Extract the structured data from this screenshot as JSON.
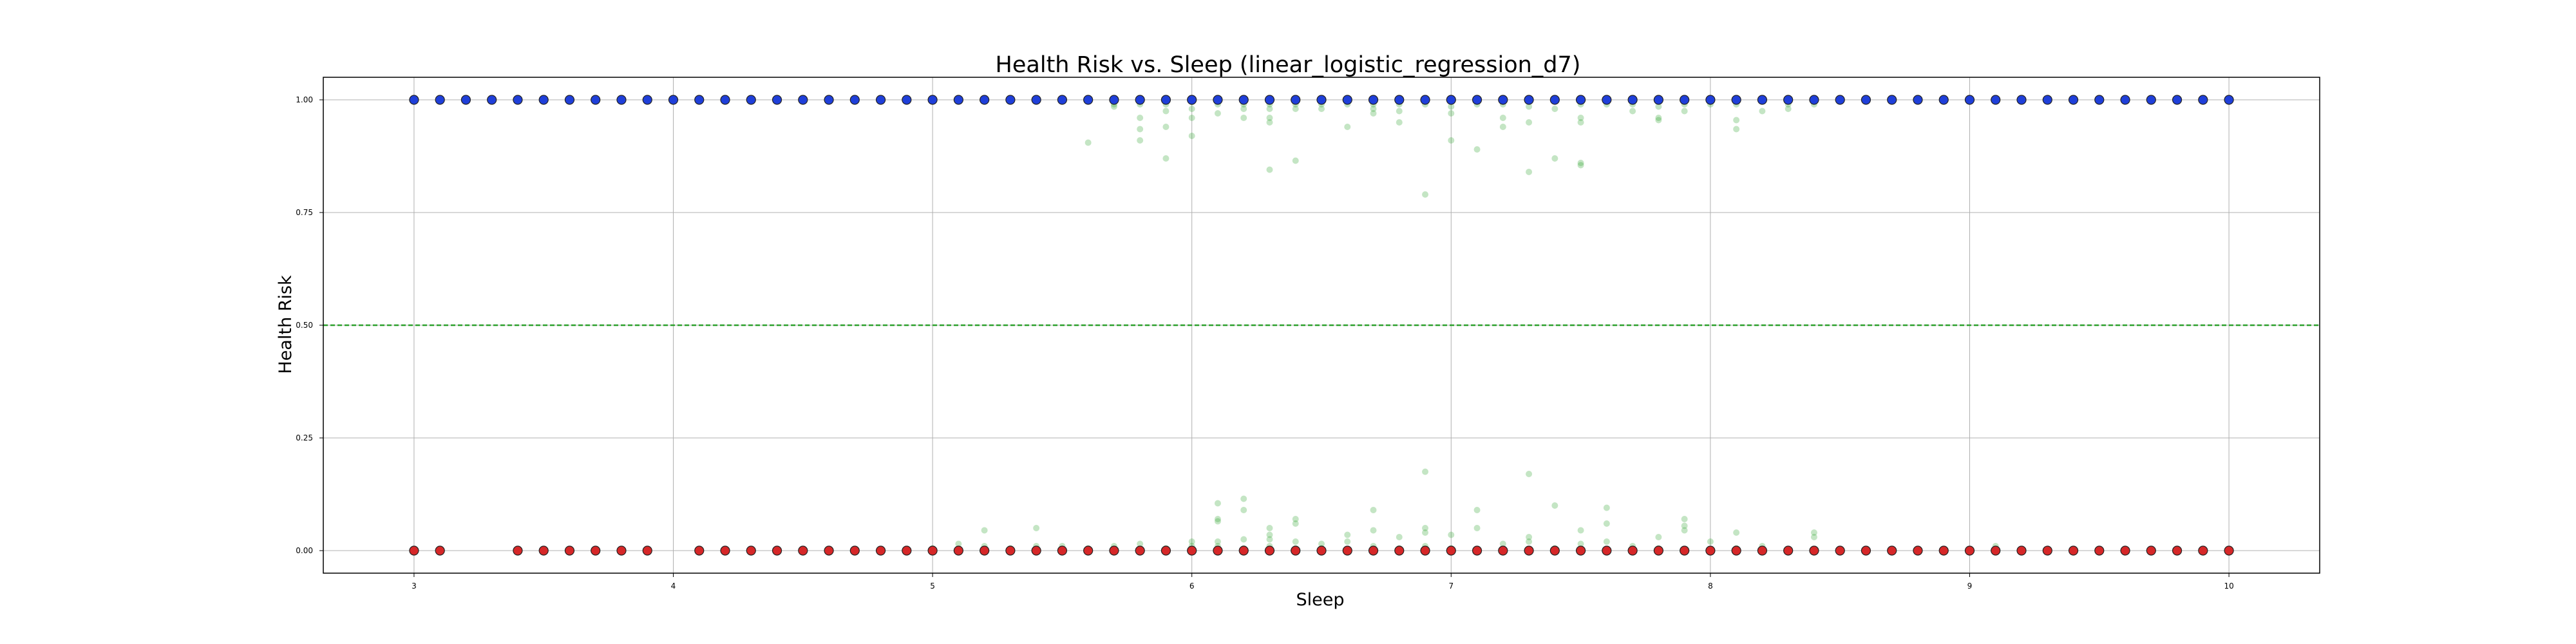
{
  "chart_data": {
    "type": "scatter",
    "title": "Health Risk vs. Sleep (linear_logistic_regression_d7)",
    "xlabel": "Sleep",
    "ylabel": "Health Risk",
    "xlim": [
      2.65,
      10.35
    ],
    "ylim": [
      -0.05,
      1.05
    ],
    "xticks": [
      3,
      4,
      5,
      6,
      7,
      8,
      9,
      10
    ],
    "yticks": [
      0.0,
      0.25,
      0.5,
      0.75,
      1.0
    ],
    "ytick_labels": [
      "0.00",
      "0.25",
      "0.50",
      "0.75",
      "1.00"
    ],
    "grid": true,
    "threshold": {
      "y": 0.5,
      "color": "#2ca02c",
      "style": "dashed"
    },
    "colors": {
      "positive": "#1f3fd9",
      "negative": "#d62728",
      "prediction": "#2ca02c",
      "marker_edge": "#222222"
    },
    "series": [
      {
        "color_key": "positive",
        "y": 1.0,
        "x": [
          3.0,
          3.1,
          3.2,
          3.3,
          3.4,
          3.5,
          3.6,
          3.7,
          3.8,
          3.9,
          4.0,
          4.1,
          4.2,
          4.3,
          4.4,
          4.5,
          4.6,
          4.7,
          4.8,
          4.9,
          5.0,
          5.1,
          5.2,
          5.3,
          5.4,
          5.5,
          5.6,
          5.7,
          5.8,
          5.9,
          6.0,
          6.1,
          6.2,
          6.3,
          6.4,
          6.5,
          6.6,
          6.7,
          6.8,
          6.9,
          7.0,
          7.1,
          7.2,
          7.3,
          7.4,
          7.5,
          7.6,
          7.7,
          7.8,
          7.9,
          8.0,
          8.1,
          8.2,
          8.3,
          8.4,
          8.5,
          8.6,
          8.7,
          8.8,
          8.9,
          9.0,
          9.1,
          9.2,
          9.3,
          9.4,
          9.5,
          9.6,
          9.7,
          9.8,
          9.9,
          10.0
        ]
      },
      {
        "color_key": "negative",
        "y": 0.0,
        "x": [
          3.0,
          3.1,
          3.4,
          3.5,
          3.6,
          3.7,
          3.8,
          3.9,
          4.1,
          4.2,
          4.3,
          4.4,
          4.5,
          4.6,
          4.7,
          4.8,
          4.9,
          5.0,
          5.1,
          5.2,
          5.3,
          5.4,
          5.5,
          5.6,
          5.7,
          5.8,
          5.9,
          6.0,
          6.1,
          6.2,
          6.3,
          6.4,
          6.5,
          6.6,
          6.7,
          6.8,
          6.9,
          7.0,
          7.1,
          7.2,
          7.3,
          7.4,
          7.5,
          7.6,
          7.7,
          7.8,
          7.9,
          8.0,
          8.1,
          8.2,
          8.3,
          8.4,
          8.5,
          8.6,
          8.7,
          8.8,
          8.9,
          9.0,
          9.1,
          9.2,
          9.3,
          9.4,
          9.5,
          9.6,
          9.7,
          9.8,
          9.9,
          10.0
        ]
      },
      {
        "color_key": "prediction",
        "points": [
          [
            5.6,
            0.905
          ],
          [
            5.7,
            0.99
          ],
          [
            5.7,
            0.985
          ],
          [
            5.8,
            0.96
          ],
          [
            5.8,
            0.935
          ],
          [
            5.8,
            0.91
          ],
          [
            5.8,
            0.99
          ],
          [
            5.9,
            0.975
          ],
          [
            5.9,
            0.94
          ],
          [
            5.9,
            0.87
          ],
          [
            5.9,
            0.99
          ],
          [
            6.0,
            0.995
          ],
          [
            6.0,
            0.96
          ],
          [
            6.0,
            0.92
          ],
          [
            6.0,
            0.98
          ],
          [
            6.1,
            0.97
          ],
          [
            6.1,
            0.99
          ],
          [
            6.2,
            0.99
          ],
          [
            6.2,
            0.96
          ],
          [
            6.2,
            0.98
          ],
          [
            6.3,
            0.98
          ],
          [
            6.3,
            0.96
          ],
          [
            6.3,
            0.95
          ],
          [
            6.3,
            0.845
          ],
          [
            6.3,
            0.99
          ],
          [
            6.4,
            0.99
          ],
          [
            6.4,
            0.98
          ],
          [
            6.4,
            0.865
          ],
          [
            6.5,
            0.99
          ],
          [
            6.5,
            0.98
          ],
          [
            6.6,
            0.99
          ],
          [
            6.6,
            0.94
          ],
          [
            6.7,
            0.99
          ],
          [
            6.7,
            0.97
          ],
          [
            6.7,
            0.98
          ],
          [
            6.8,
            0.99
          ],
          [
            6.8,
            0.95
          ],
          [
            6.8,
            0.975
          ],
          [
            6.9,
            0.79
          ],
          [
            6.9,
            0.99
          ],
          [
            7.0,
            0.985
          ],
          [
            7.0,
            0.91
          ],
          [
            7.0,
            0.97
          ],
          [
            7.1,
            0.99
          ],
          [
            7.1,
            0.89
          ],
          [
            7.2,
            0.96
          ],
          [
            7.2,
            0.94
          ],
          [
            7.2,
            0.99
          ],
          [
            7.3,
            0.985
          ],
          [
            7.3,
            0.84
          ],
          [
            7.3,
            0.95
          ],
          [
            7.4,
            0.98
          ],
          [
            7.4,
            0.87
          ],
          [
            7.5,
            0.99
          ],
          [
            7.5,
            0.96
          ],
          [
            7.5,
            0.95
          ],
          [
            7.5,
            0.86
          ],
          [
            7.5,
            0.855
          ],
          [
            7.6,
            0.99
          ],
          [
            7.7,
            0.99
          ],
          [
            7.7,
            0.975
          ],
          [
            7.8,
            0.985
          ],
          [
            7.8,
            0.96
          ],
          [
            7.8,
            0.955
          ],
          [
            7.9,
            0.99
          ],
          [
            7.9,
            0.975
          ],
          [
            8.0,
            0.99
          ],
          [
            8.1,
            0.955
          ],
          [
            8.1,
            0.935
          ],
          [
            8.1,
            0.99
          ],
          [
            8.2,
            0.975
          ],
          [
            8.3,
            0.99
          ],
          [
            8.3,
            0.98
          ],
          [
            8.4,
            0.99
          ],
          [
            5.0,
            0.005
          ],
          [
            5.1,
            0.015
          ],
          [
            5.2,
            0.045
          ],
          [
            5.2,
            0.01
          ],
          [
            5.3,
            0.005
          ],
          [
            5.4,
            0.05
          ],
          [
            5.4,
            0.01
          ],
          [
            5.5,
            0.01
          ],
          [
            5.6,
            0.005
          ],
          [
            5.7,
            0.01
          ],
          [
            5.8,
            0.015
          ],
          [
            5.9,
            0.005
          ],
          [
            6.0,
            0.01
          ],
          [
            6.0,
            0.02
          ],
          [
            6.1,
            0.105
          ],
          [
            6.1,
            0.07
          ],
          [
            6.1,
            0.065
          ],
          [
            6.1,
            0.02
          ],
          [
            6.1,
            0.01
          ],
          [
            6.2,
            0.115
          ],
          [
            6.2,
            0.09
          ],
          [
            6.2,
            0.025
          ],
          [
            6.2,
            0.005
          ],
          [
            6.3,
            0.05
          ],
          [
            6.3,
            0.035
          ],
          [
            6.3,
            0.025
          ],
          [
            6.3,
            0.01
          ],
          [
            6.4,
            0.07
          ],
          [
            6.4,
            0.06
          ],
          [
            6.4,
            0.02
          ],
          [
            6.4,
            0.005
          ],
          [
            6.5,
            0.015
          ],
          [
            6.5,
            0.005
          ],
          [
            6.6,
            0.035
          ],
          [
            6.6,
            0.02
          ],
          [
            6.7,
            0.09
          ],
          [
            6.7,
            0.045
          ],
          [
            6.7,
            0.01
          ],
          [
            6.8,
            0.03
          ],
          [
            6.8,
            0.005
          ],
          [
            6.9,
            0.175
          ],
          [
            6.9,
            0.05
          ],
          [
            6.9,
            0.04
          ],
          [
            6.9,
            0.01
          ],
          [
            7.0,
            0.035
          ],
          [
            7.0,
            0.005
          ],
          [
            7.1,
            0.09
          ],
          [
            7.1,
            0.05
          ],
          [
            7.2,
            0.015
          ],
          [
            7.3,
            0.17
          ],
          [
            7.3,
            0.03
          ],
          [
            7.3,
            0.02
          ],
          [
            7.4,
            0.1
          ],
          [
            7.4,
            0.005
          ],
          [
            7.5,
            0.045
          ],
          [
            7.5,
            0.015
          ],
          [
            7.6,
            0.095
          ],
          [
            7.6,
            0.06
          ],
          [
            7.6,
            0.02
          ],
          [
            7.7,
            0.01
          ],
          [
            7.8,
            0.03
          ],
          [
            7.8,
            0.005
          ],
          [
            7.9,
            0.07
          ],
          [
            7.9,
            0.055
          ],
          [
            7.9,
            0.045
          ],
          [
            8.0,
            0.02
          ],
          [
            8.1,
            0.04
          ],
          [
            8.1,
            0.005
          ],
          [
            8.2,
            0.01
          ],
          [
            8.4,
            0.04
          ],
          [
            8.4,
            0.03
          ],
          [
            9.1,
            0.01
          ]
        ]
      }
    ]
  }
}
